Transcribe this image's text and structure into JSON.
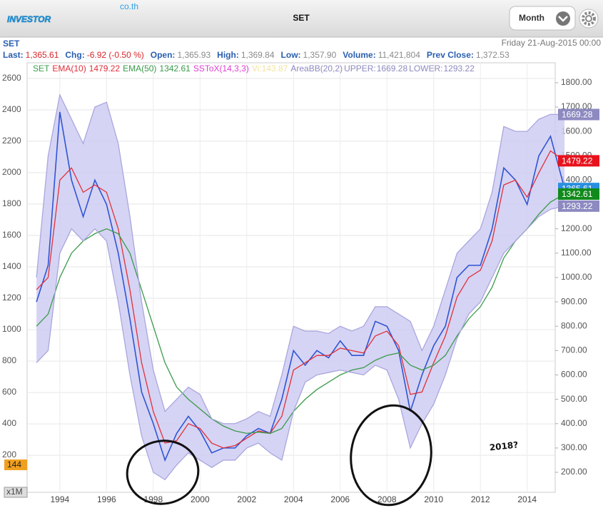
{
  "header": {
    "logo": "INVESTOR",
    "logo_domain": "co.th",
    "title": "SET",
    "period": "Month"
  },
  "quote": {
    "symbol": "SET",
    "datetime": "Friday 21-Aug-2015 00:00",
    "fields": [
      {
        "label": "Last:",
        "value": "1,365.61",
        "color": "#d8262b"
      },
      {
        "label": "Chg:",
        "value": "-6.92 (-0.50 %)",
        "color": "#d8262b"
      },
      {
        "label": "Open:",
        "value": "1,365.93",
        "color": "#8a8a8a"
      },
      {
        "label": "High:",
        "value": "1,369.84",
        "color": "#8a8a8a"
      },
      {
        "label": "Low:",
        "value": "1,357.90",
        "color": "#8a8a8a"
      },
      {
        "label": "Volume:",
        "value": "11,421,804",
        "color": "#8a8a8a"
      },
      {
        "label": "Prev Close:",
        "value": "1,372.53",
        "color": "#8a8a8a"
      }
    ]
  },
  "chart_data": {
    "type": "line",
    "x": [
      1993,
      1993.5,
      1994,
      1994.5,
      1995,
      1995.5,
      1996,
      1996.5,
      1997,
      1997.5,
      1998,
      1998.5,
      1999,
      1999.5,
      2000,
      2000.5,
      2001,
      2001.5,
      2002,
      2002.5,
      2003,
      2003.5,
      2004,
      2004.5,
      2005,
      2005.5,
      2006,
      2006.5,
      2007,
      2007.5,
      2008,
      2008.5,
      2009,
      2009.5,
      2010,
      2010.5,
      2011,
      2011.5,
      2012,
      2012.5,
      2013,
      2013.5,
      2014,
      2014.5,
      2015,
      2015.6
    ],
    "xlim": [
      1992.6,
      2015.2
    ],
    "xticks": [
      1994,
      1996,
      1998,
      2000,
      2002,
      2004,
      2006,
      2008,
      2010,
      2012,
      2014
    ],
    "ylim": [
      -36,
      2682
    ],
    "yticks": [
      200,
      400,
      600,
      800,
      1000,
      1200,
      1400,
      1600,
      1800,
      2000,
      2200,
      2400,
      2600
    ],
    "y2lim": [
      118,
      1870
    ],
    "y2ticks": [
      {
        "value": 200,
        "label": "200.00"
      },
      {
        "value": 300,
        "label": "300.00"
      },
      {
        "value": 400,
        "label": "400.00"
      },
      {
        "value": 500,
        "label": "500.00"
      },
      {
        "value": 600,
        "label": "600.00"
      },
      {
        "value": 700,
        "label": "700.00"
      },
      {
        "value": 800,
        "label": "800.00"
      },
      {
        "value": 900,
        "label": "900.00"
      },
      {
        "value": 1000,
        "label": "1000.00"
      },
      {
        "value": 1100,
        "label": "1100.00"
      },
      {
        "value": 1200,
        "label": "1200.00"
      },
      {
        "value": 1300,
        "label": "1300.00"
      },
      {
        "value": 1400,
        "label": "1400.00"
      },
      {
        "value": 1500,
        "label": "1500.00"
      },
      {
        "value": 1600,
        "label": "1600.00"
      },
      {
        "value": 1700,
        "label": "1700.00"
      },
      {
        "value": 1800,
        "label": "1800.00"
      }
    ],
    "grid": true,
    "band_fill": "#cfcdf2",
    "series": [
      {
        "name": "SET",
        "color": "#2f55d4",
        "badge_color": "#2b8fe0",
        "axis": "y2",
        "values": [
          900,
          1050,
          1680,
          1400,
          1250,
          1400,
          1300,
          1100,
          830,
          530,
          400,
          250,
          360,
          430,
          370,
          280,
          300,
          300,
          350,
          380,
          360,
          500,
          700,
          640,
          700,
          670,
          740,
          680,
          680,
          820,
          800,
          700,
          450,
          600,
          720,
          800,
          1000,
          1050,
          1050,
          1200,
          1450,
          1400,
          1300,
          1500,
          1580,
          1365.61
        ]
      },
      {
        "name": "EMA(10)",
        "color": "#e0303a",
        "badge_color": "#e8121c",
        "axis": "y2",
        "values": [
          950,
          1000,
          1400,
          1450,
          1350,
          1380,
          1350,
          1200,
          950,
          650,
          450,
          320,
          330,
          400,
          380,
          320,
          300,
          310,
          340,
          370,
          360,
          430,
          620,
          650,
          680,
          680,
          710,
          700,
          690,
          760,
          780,
          720,
          520,
          530,
          650,
          760,
          920,
          1000,
          1030,
          1150,
          1380,
          1400,
          1330,
          1430,
          1520,
          1479.22
        ]
      },
      {
        "name": "EMA(50)",
        "color": "#3a9a4a",
        "badge_color": "#118a1c",
        "axis": "y2",
        "values": [
          800,
          850,
          1000,
          1100,
          1150,
          1180,
          1200,
          1180,
          1100,
          950,
          800,
          650,
          550,
          500,
          460,
          420,
          390,
          370,
          360,
          365,
          360,
          380,
          450,
          500,
          540,
          570,
          600,
          620,
          630,
          660,
          680,
          690,
          640,
          620,
          640,
          680,
          760,
          830,
          880,
          960,
          1080,
          1150,
          1200,
          1260,
          1310,
          1342.61
        ]
      },
      {
        "name": "UPPER:",
        "color": "#a9a6de",
        "badge_color": "#8c8ac0",
        "axis": "y2",
        "values": [
          1000,
          1500,
          1750,
          1650,
          1550,
          1700,
          1720,
          1550,
          1250,
          900,
          620,
          450,
          500,
          550,
          520,
          420,
          400,
          400,
          420,
          450,
          430,
          600,
          800,
          780,
          780,
          770,
          800,
          780,
          800,
          880,
          880,
          850,
          820,
          700,
          800,
          950,
          1100,
          1150,
          1200,
          1350,
          1620,
          1600,
          1600,
          1650,
          1670,
          1669.28
        ]
      },
      {
        "name": "LOWER:",
        "color": "#a9a6de",
        "badge_color": "#8c8ac0",
        "axis": "y2",
        "values": [
          650,
          700,
          1100,
          1200,
          1150,
          1200,
          1150,
          900,
          600,
          350,
          200,
          170,
          230,
          280,
          250,
          220,
          250,
          250,
          300,
          320,
          280,
          250,
          450,
          570,
          600,
          610,
          620,
          610,
          600,
          640,
          620,
          500,
          300,
          400,
          480,
          600,
          750,
          850,
          900,
          1000,
          1100,
          1150,
          1200,
          1250,
          1280,
          1293.22
        ]
      }
    ],
    "indicators": [
      {
        "label": "SSToX(14,3,3)",
        "color": "#e040d0"
      },
      {
        "label": "Vi:143.87",
        "color": "#f3e3a0"
      },
      {
        "label": "AreaBB(20,2)",
        "color": "#8c8ac0"
      }
    ],
    "volume_badge": "144",
    "volume_scale": "x1M",
    "annotation": "2018?"
  }
}
